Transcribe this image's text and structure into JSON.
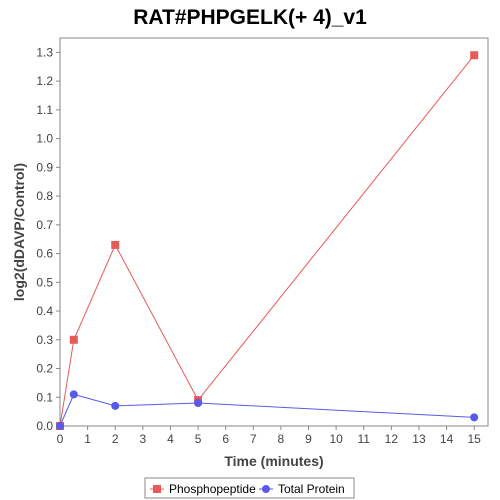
{
  "chart_data": {
    "type": "line",
    "title": "RAT#PHPGELK(+ 4)_v1",
    "xlabel": "Time (minutes)",
    "ylabel": "log2(dDAVP/Control)",
    "xlim": [
      0,
      15.5
    ],
    "ylim": [
      0,
      1.35
    ],
    "xticks": [
      0,
      1,
      2,
      3,
      4,
      5,
      6,
      7,
      8,
      9,
      10,
      11,
      12,
      13,
      14,
      15
    ],
    "yticks": [
      0.0,
      0.1,
      0.2,
      0.3,
      0.4,
      0.5,
      0.6,
      0.7,
      0.8,
      0.9,
      1.0,
      1.1,
      1.2,
      1.3
    ],
    "grid": false,
    "legend_position": "bottom",
    "series": [
      {
        "name": "Phosphopeptide",
        "color": "#e8595a",
        "marker": "square",
        "x": [
          0,
          0.5,
          2,
          5,
          15
        ],
        "y": [
          0.0,
          0.3,
          0.63,
          0.09,
          1.29
        ]
      },
      {
        "name": "Total Protein",
        "color": "#5a5ae8",
        "marker": "circle",
        "x": [
          0,
          0.5,
          2,
          5,
          15
        ],
        "y": [
          0.0,
          0.11,
          0.07,
          0.08,
          0.03
        ]
      }
    ]
  }
}
